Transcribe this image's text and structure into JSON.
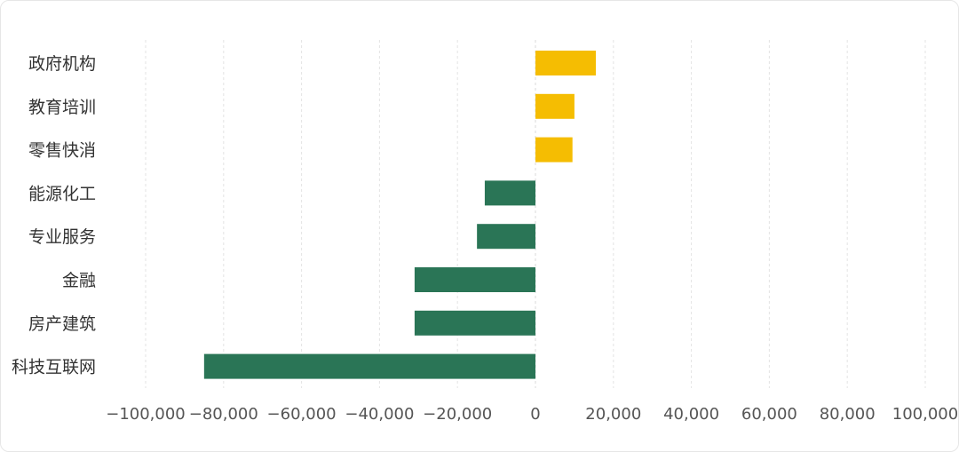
{
  "chart_data": {
    "type": "bar",
    "orientation": "horizontal",
    "categories": [
      "政府机构",
      "教育培训",
      "零售快消",
      "能源化工",
      "专业服务",
      "金融",
      "房产建筑",
      "科技互联网"
    ],
    "values": [
      15500,
      10000,
      9500,
      -13000,
      -15000,
      -31000,
      -31000,
      -85000
    ],
    "colors": {
      "positive": "#f5bd02",
      "negative": "#2a7556"
    },
    "xlim": [
      -100000,
      100000
    ],
    "xticks": [
      -100000,
      -80000,
      -60000,
      -40000,
      -20000,
      0,
      20000,
      40000,
      60000,
      80000,
      100000
    ],
    "xtick_labels": [
      "−100,000",
      "−80,000",
      "−60,000",
      "−40,000",
      "−20,000",
      "0",
      "20,000",
      "40,000",
      "60,000",
      "80,000",
      "100,000"
    ],
    "grid": "vertical-dashed",
    "title": "",
    "xlabel": "",
    "ylabel": ""
  }
}
